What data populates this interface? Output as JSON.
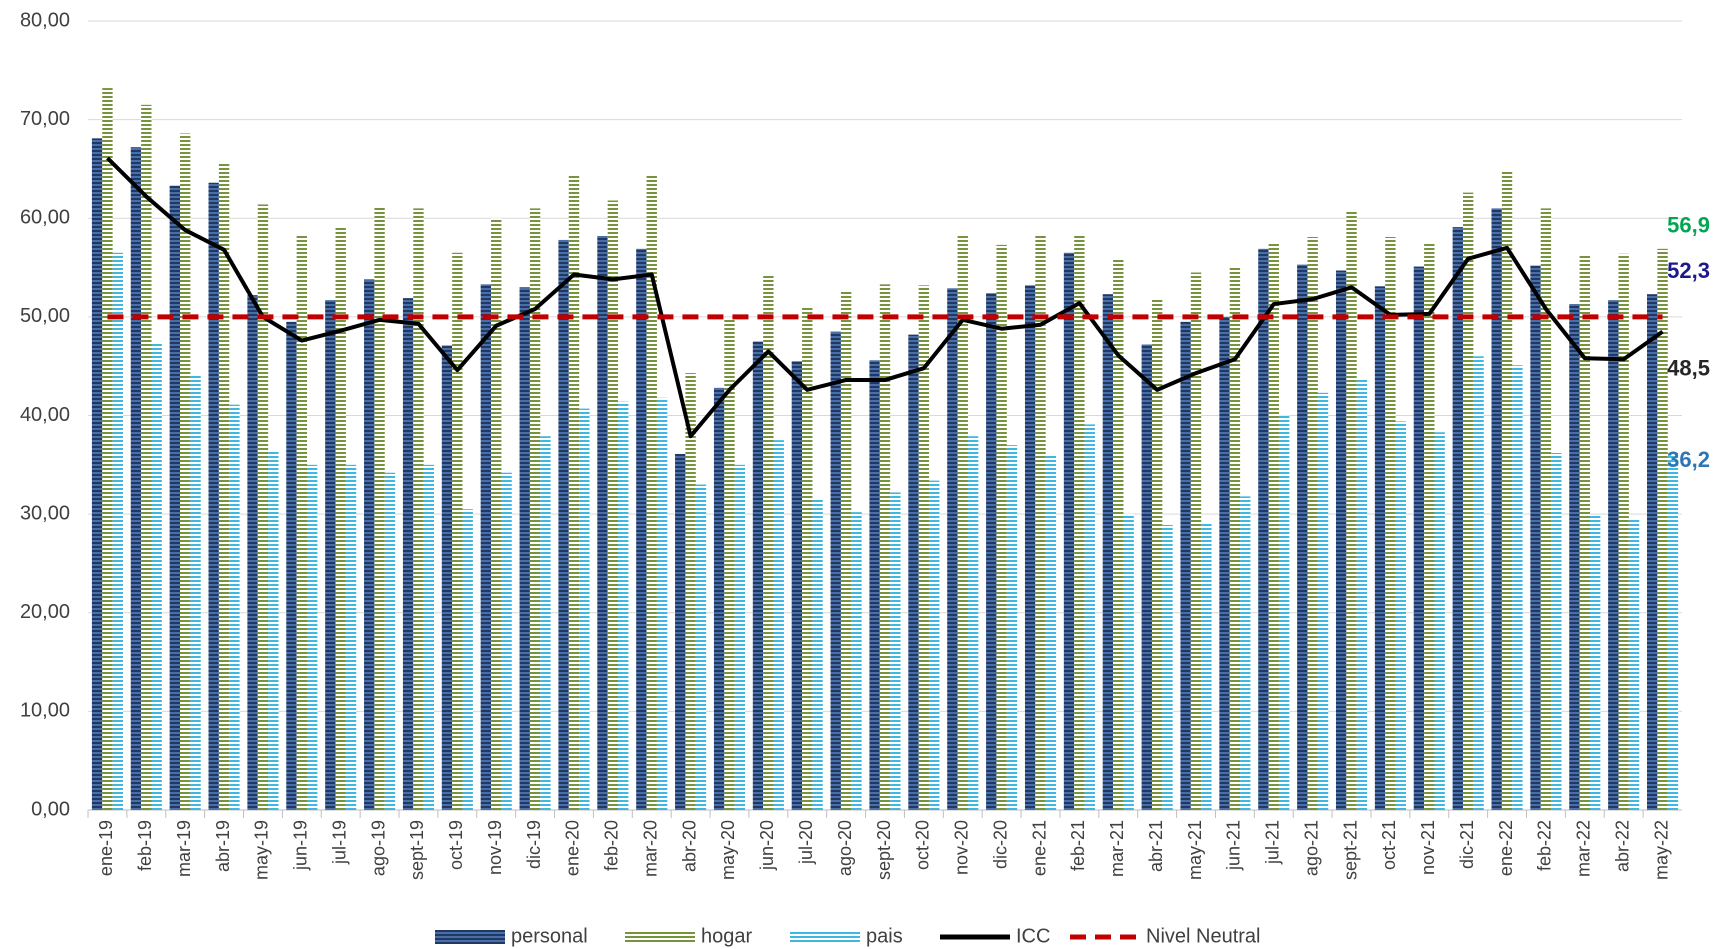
{
  "chart_data": {
    "type": "bar-line",
    "categories": [
      "ene-19",
      "feb-19",
      "mar-19",
      "abr-19",
      "may-19",
      "jun-19",
      "jul-19",
      "ago-19",
      "sept-19",
      "oct-19",
      "nov-19",
      "dic-19",
      "ene-20",
      "feb-20",
      "mar-20",
      "abr-20",
      "may-20",
      "jun-20",
      "jul-20",
      "ago-20",
      "sept-20",
      "oct-20",
      "nov-20",
      "dic-20",
      "ene-21",
      "feb-21",
      "mar-21",
      "abr-21",
      "may-21",
      "jun-21",
      "jul-21",
      "ago-21",
      "sept-21",
      "oct-21",
      "nov-21",
      "dic-21",
      "ene-22",
      "feb-22",
      "mar-22",
      "abr-22",
      "may-22"
    ],
    "series": [
      {
        "name": "personal",
        "kind": "bar",
        "color": "#1f3864",
        "stripe": "#4a6fa8",
        "label_color": "#1a1a8c",
        "values": [
          68.1,
          67.2,
          63.3,
          63.6,
          52.2,
          49.5,
          51.7,
          53.8,
          51.9,
          47.1,
          53.3,
          53.0,
          57.8,
          58.2,
          56.9,
          36.1,
          42.8,
          47.5,
          45.5,
          48.5,
          45.6,
          48.2,
          52.9,
          52.4,
          53.2,
          56.5,
          52.3,
          47.2,
          49.5,
          50.0,
          56.9,
          55.3,
          54.7,
          53.1,
          55.1,
          59.1,
          61.0,
          55.2,
          51.3,
          51.7,
          52.3
        ],
        "value_labels": [
          null,
          null,
          null,
          null,
          null,
          null,
          null,
          null,
          null,
          null,
          null,
          null,
          null,
          null,
          null,
          null,
          null,
          null,
          null,
          null,
          null,
          null,
          null,
          null,
          null,
          null,
          null,
          null,
          null,
          null,
          null,
          null,
          null,
          null,
          null,
          null,
          null,
          null,
          null,
          null,
          "52,3"
        ]
      },
      {
        "name": "hogar",
        "kind": "bar",
        "color": "#ffffff",
        "stripe": "#77933c",
        "label_color": "#00a651",
        "values": [
          73.2,
          71.5,
          68.6,
          65.5,
          61.4,
          58.4,
          59.2,
          61.1,
          61.0,
          56.5,
          60.0,
          61.0,
          64.4,
          61.8,
          64.3,
          44.3,
          49.8,
          54.3,
          50.9,
          52.7,
          53.3,
          53.2,
          58.3,
          57.3,
          58.4,
          58.2,
          55.9,
          51.9,
          54.5,
          55.0,
          57.4,
          58.1,
          60.8,
          58.1,
          57.5,
          62.6,
          64.7,
          61.0,
          56.2,
          56.4,
          56.9
        ],
        "value_labels": [
          null,
          null,
          null,
          null,
          null,
          null,
          null,
          null,
          null,
          null,
          null,
          null,
          null,
          null,
          null,
          null,
          null,
          null,
          null,
          null,
          null,
          null,
          null,
          null,
          null,
          null,
          null,
          null,
          null,
          null,
          null,
          null,
          null,
          null,
          null,
          null,
          null,
          null,
          null,
          null,
          "56,9"
        ]
      },
      {
        "name": "pais",
        "kind": "bar",
        "color": "#ffffff",
        "stripe": "#3fb7e0",
        "label_color": "#2e75b6",
        "values": [
          56.5,
          47.3,
          44.2,
          41.1,
          36.5,
          35.0,
          35.0,
          34.2,
          35.0,
          30.5,
          34.2,
          37.9,
          40.7,
          41.4,
          41.8,
          33.0,
          35.0,
          37.5,
          31.6,
          30.2,
          32.2,
          33.4,
          37.9,
          37.0,
          36.1,
          39.1,
          30.0,
          28.9,
          29.0,
          31.8,
          40.0,
          42.3,
          43.6,
          39.4,
          38.3,
          46.0,
          45.1,
          36.2,
          29.9,
          29.5,
          36.2
        ],
        "value_labels": [
          null,
          null,
          null,
          null,
          null,
          null,
          null,
          null,
          null,
          null,
          null,
          null,
          null,
          null,
          null,
          null,
          null,
          null,
          null,
          null,
          null,
          null,
          null,
          null,
          null,
          null,
          null,
          null,
          null,
          null,
          null,
          null,
          null,
          null,
          null,
          null,
          null,
          null,
          null,
          null,
          "36,2"
        ]
      },
      {
        "name": "ICC",
        "kind": "line",
        "color": "#000000",
        "label_color": "#262626",
        "values": [
          66.1,
          62.2,
          58.8,
          56.8,
          50.0,
          47.6,
          48.6,
          49.7,
          49.3,
          44.6,
          49.1,
          50.8,
          54.3,
          53.8,
          54.3,
          37.9,
          42.6,
          46.5,
          42.6,
          43.6,
          43.6,
          44.8,
          49.7,
          48.8,
          49.2,
          51.4,
          46.1,
          42.6,
          44.3,
          45.7,
          51.3,
          51.8,
          53.0,
          50.2,
          50.3,
          55.9,
          57.0,
          50.8,
          45.8,
          45.7,
          48.5
        ],
        "value_labels": [
          null,
          null,
          null,
          null,
          null,
          null,
          null,
          null,
          null,
          null,
          null,
          null,
          null,
          null,
          null,
          null,
          null,
          null,
          null,
          null,
          null,
          null,
          null,
          null,
          null,
          null,
          null,
          null,
          null,
          null,
          null,
          null,
          null,
          null,
          null,
          null,
          null,
          null,
          null,
          null,
          "48,5"
        ]
      },
      {
        "name": "Nivel Neutral",
        "kind": "line",
        "dashed": true,
        "color": "#c00000",
        "values": [
          50,
          50,
          50,
          50,
          50,
          50,
          50,
          50,
          50,
          50,
          50,
          50,
          50,
          50,
          50,
          50,
          50,
          50,
          50,
          50,
          50,
          50,
          50,
          50,
          50,
          50,
          50,
          50,
          50,
          50,
          50,
          50,
          50,
          50,
          50,
          50,
          50,
          50,
          50,
          50,
          50
        ]
      }
    ],
    "ylim": [
      0,
      80
    ],
    "yticks": [
      {
        "value": 0,
        "label": "0,00"
      },
      {
        "value": 10,
        "label": "10,00"
      },
      {
        "value": 20,
        "label": "20,00"
      },
      {
        "value": 30,
        "label": "30,00"
      },
      {
        "value": 40,
        "label": "40,00"
      },
      {
        "value": 50,
        "label": "50,00"
      },
      {
        "value": 60,
        "label": "60,00"
      },
      {
        "value": 70,
        "label": "70,00"
      },
      {
        "value": 80,
        "label": "80,00"
      }
    ],
    "grid": true,
    "legend": "bottom"
  }
}
